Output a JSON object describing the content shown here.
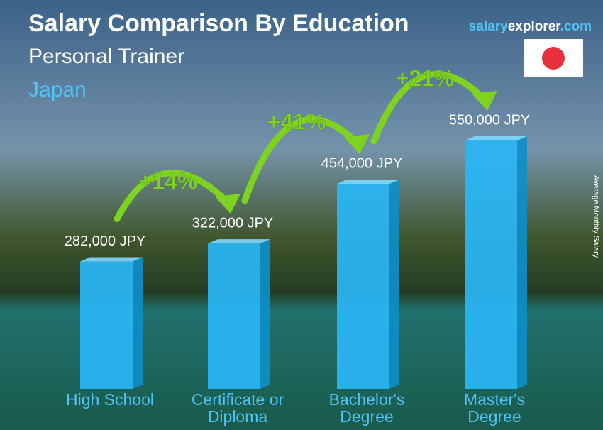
{
  "chart_data": {
    "type": "bar3d",
    "title": "Salary Comparison By Education",
    "subtitle": "Personal Trainer",
    "location": "Japan",
    "brand": [
      "salary",
      "explorer",
      ".com"
    ],
    "y_label": "Average Monthly Salary",
    "categories": [
      "High School",
      "Certificate or\nDiploma",
      "Bachelor's\nDegree",
      "Master's\nDegree"
    ],
    "values": [
      282000,
      322000,
      454000,
      550000
    ],
    "value_labels": [
      "282,000 JPY",
      "322,000 JPY",
      "454,000 JPY",
      "550,000 JPY"
    ],
    "changes": [
      "+14%",
      "+41%",
      "+21%"
    ],
    "color": "#29b6f6",
    "change_color": "#7ed321"
  }
}
